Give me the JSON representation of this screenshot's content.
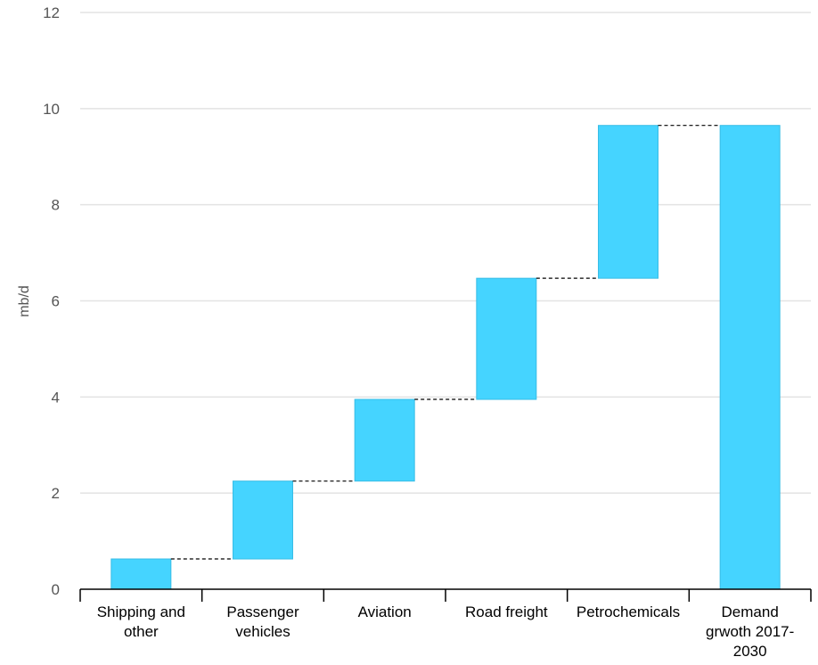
{
  "chart_data": {
    "type": "bar",
    "subtype": "waterfall",
    "title": "",
    "xlabel": "",
    "ylabel": "mb/d",
    "ylim": [
      0,
      12
    ],
    "yticks": [
      0,
      2,
      4,
      6,
      8,
      10,
      12
    ],
    "grid": true,
    "legend": "none",
    "categories": [
      "Shipping and other",
      "Passenger vehicles",
      "Aviation",
      "Road freight",
      "Petrochemicals",
      "Demand grwoth 2017-2030"
    ],
    "category_label_lines": [
      [
        "Shipping and",
        "other"
      ],
      [
        "Passenger",
        "vehicles"
      ],
      [
        "Aviation"
      ],
      [
        "Road freight"
      ],
      [
        "Petrochemicals"
      ],
      [
        "Demand",
        "grwoth 2017-",
        "2030"
      ]
    ],
    "values": [
      0.63,
      1.62,
      1.7,
      2.52,
      3.18,
      9.65
    ],
    "bar_ranges": [
      [
        0,
        0.63
      ],
      [
        0.63,
        2.25
      ],
      [
        2.25,
        3.95
      ],
      [
        3.95,
        6.47
      ],
      [
        6.47,
        9.65
      ],
      [
        0,
        9.65
      ]
    ],
    "is_total": [
      false,
      false,
      false,
      false,
      false,
      true
    ],
    "colors": {
      "bar": "#45d4ff",
      "bar_stroke": "#38bde6",
      "grid": "#e3e3e3",
      "axis": "#000000",
      "connector": "#000000"
    }
  }
}
